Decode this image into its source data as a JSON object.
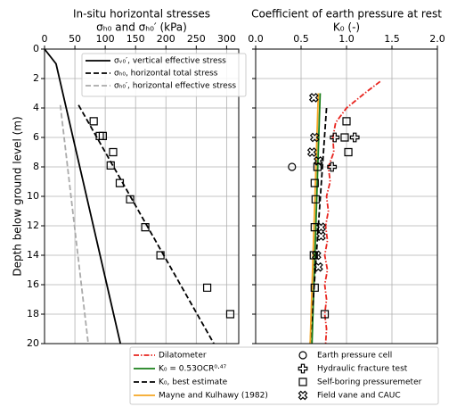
{
  "chart_data": [
    {
      "type": "line",
      "title": "In-situ horizontal stresses",
      "xlabel": "σₕ₀ and σₕ₀′ (kPa)",
      "ylabel": "Depth below ground level (m)",
      "xlim": [
        0,
        320
      ],
      "xticks": [
        0,
        50,
        100,
        150,
        200,
        250,
        300
      ],
      "ylim": [
        0,
        20
      ],
      "yticks": [
        0,
        2,
        4,
        6,
        8,
        10,
        12,
        14,
        16,
        18,
        20
      ],
      "y_inverted": true,
      "grid": true,
      "legend": "upper right",
      "series": [
        {
          "name": "σᵥ₀′, vertical effective stress",
          "color": "#000000",
          "line_style": "solid",
          "x": [
            0,
            19,
            125
          ],
          "y": [
            0,
            1,
            20
          ]
        },
        {
          "name": "σₕ₀, horizontal total stress",
          "color": "#000000",
          "line_style": "dashed",
          "x": [
            56,
            279
          ],
          "y": [
            3.8,
            20
          ]
        },
        {
          "name": "σₕ₀′, horizontal effective stress",
          "color": "#aaaaaa",
          "line_style": "dashed",
          "x": [
            26,
            72
          ],
          "y": [
            3.8,
            20
          ]
        },
        {
          "color": "#000000",
          "marker": "square",
          "x": [
            81,
            91,
            96,
            113,
            109,
            124,
            141,
            166,
            191,
            268,
            306
          ],
          "y": [
            4.9,
            5.9,
            5.9,
            7.0,
            7.9,
            9.1,
            10.2,
            12.1,
            14.0,
            16.2,
            18.0
          ]
        }
      ]
    },
    {
      "type": "line",
      "title": "Coefficient of earth pressure at rest",
      "xlabel": "K₀ (-)",
      "xlim": [
        0,
        2
      ],
      "xticks": [
        {
          "value": 0,
          "label": "0.0"
        },
        {
          "value": 0.5,
          "label": "0.5"
        },
        {
          "value": 1,
          "label": "1.0"
        },
        {
          "value": 1.5,
          "label": "1.5"
        },
        {
          "value": 2,
          "label": "2.0"
        }
      ],
      "ylim": [
        0,
        20
      ],
      "yticks": [
        0,
        2,
        4,
        6,
        8,
        10,
        12,
        14,
        16,
        18,
        20
      ],
      "ytick_labels": false,
      "y_inverted": true,
      "grid": true,
      "legend": "lower center outside",
      "series": [
        {
          "name": "Dilatometer",
          "color": "#e8251f",
          "line_style": "dashdot",
          "x": [
            1.37,
            1.2,
            1.0,
            0.88,
            0.85,
            0.86,
            0.8,
            0.82,
            0.78,
            0.8,
            0.77,
            0.79,
            0.76,
            0.79,
            0.76,
            0.78,
            0.76,
            0.78,
            0.77
          ],
          "y": [
            2.2,
            3,
            4,
            5,
            6,
            7,
            8,
            9,
            10,
            11,
            12,
            13,
            14,
            15,
            16,
            17,
            18,
            19,
            20
          ]
        },
        {
          "name": "K₀ = 0.53OCR⁰·⁴⁷",
          "color": "#1a7f1a",
          "line_style": "solid",
          "x": [
            0.71,
            0.62
          ],
          "y": [
            3,
            20
          ]
        },
        {
          "name": "K₀, best estimate",
          "color": "#000000",
          "line_style": "dashed",
          "x": [
            0.78,
            0.6
          ],
          "y": [
            4,
            20
          ]
        },
        {
          "name": "Mayne and Kulhawy (1982)",
          "color": "#f5a623",
          "line_style": "solid",
          "x": [
            0.69,
            0.6
          ],
          "y": [
            3,
            20
          ]
        },
        {
          "name": "Earth pressure cell",
          "color": "#000000",
          "marker": "circle",
          "x": [
            0.4
          ],
          "y": [
            8
          ]
        },
        {
          "name": "Hydraulic fracture test",
          "color": "#000000",
          "marker": "plus",
          "x": [
            0.87,
            1.09,
            0.84
          ],
          "y": [
            6,
            6,
            8
          ]
        },
        {
          "name": "Self-boring pressuremeter",
          "color": "#000000",
          "marker": "square",
          "x": [
            1.0,
            0.98,
            1.02,
            0.68,
            0.65,
            0.66,
            0.65,
            0.64,
            0.65,
            0.76
          ],
          "y": [
            4.9,
            6,
            7,
            8,
            9.1,
            10.2,
            12.1,
            14,
            16.2,
            18
          ]
        },
        {
          "name": "Field vane and CAUC",
          "color": "#000000",
          "marker": "cross",
          "x": [
            0.64,
            0.65,
            0.62,
            0.69,
            0.72,
            0.72,
            0.67,
            0.69
          ],
          "y": [
            3.3,
            6,
            7,
            7.6,
            12.1,
            12.7,
            14,
            14.8
          ]
        }
      ]
    }
  ]
}
